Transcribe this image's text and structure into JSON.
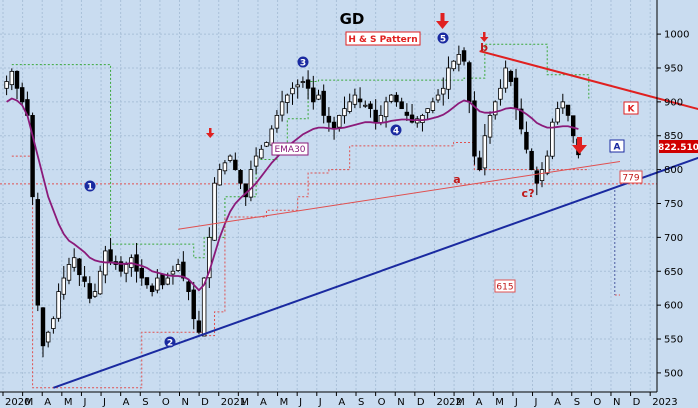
{
  "chart_data": {
    "type": "candlestick",
    "title": "GD",
    "title_color": "#1a9a2a",
    "pattern_label": "H & S Pattern",
    "ema_label": "EMA30",
    "last_price_label": "822.510",
    "level_labels": [
      "779",
      "615"
    ],
    "wave_labels": [
      "1",
      "2",
      "3",
      "4",
      "5"
    ],
    "pattern_point_labels": [
      "a",
      "b",
      "c?"
    ],
    "line_labels": [
      "K",
      "A"
    ],
    "y_axis": {
      "ticks": [
        500,
        550,
        600,
        650,
        700,
        750,
        800,
        850,
        900,
        950,
        1000
      ],
      "range": [
        460,
        1040
      ],
      "side": "right"
    },
    "x_axis": {
      "ticks": [
        "2020",
        "M",
        "A",
        "M",
        "J",
        "J",
        "A",
        "S",
        "O",
        "N",
        "D",
        "2021",
        "M",
        "A",
        "M",
        "J",
        "J",
        "A",
        "S",
        "O",
        "N",
        "D",
        "2022",
        "M",
        "A",
        "M",
        "J",
        "J",
        "A",
        "S",
        "O",
        "N",
        "D",
        "2023"
      ]
    },
    "grid": true,
    "colors": {
      "background": "#c9dcf0",
      "candle": "#000000",
      "ema": "#8b1a7a",
      "trend_k": "#e02020",
      "trend_a": "#1a2aa0",
      "neckline": "#e05050",
      "stop_dotted": "#3aa83a",
      "support_dotted": "#e05050",
      "wave_marker": "#1a2aa0",
      "arrow": "#e02020"
    },
    "weekly_closes": [
      930,
      945,
      920,
      900,
      880,
      760,
      600,
      540,
      560,
      580,
      620,
      640,
      660,
      670,
      645,
      635,
      610,
      620,
      650,
      680,
      665,
      660,
      650,
      660,
      670,
      650,
      640,
      630,
      620,
      640,
      630,
      640,
      650,
      660,
      640,
      620,
      580,
      560,
      640,
      700,
      780,
      800,
      810,
      820,
      800,
      780,
      760,
      800,
      820,
      830,
      840,
      860,
      880,
      900,
      910,
      920,
      925,
      930,
      920,
      900,
      910,
      880,
      870,
      860,
      880,
      890,
      900,
      910,
      900,
      895,
      890,
      870,
      880,
      900,
      910,
      900,
      890,
      880,
      870,
      875,
      880,
      890,
      900,
      910,
      920,
      950,
      960,
      970,
      960,
      900,
      820,
      800,
      850,
      880,
      900,
      920,
      950,
      930,
      890,
      860,
      830,
      800,
      780,
      800,
      820,
      870,
      890,
      900,
      880,
      850,
      822
    ],
    "ema30": [
      900,
      905,
      902,
      895,
      880,
      850,
      820,
      790,
      760,
      740,
      720,
      705,
      695,
      690,
      684,
      678,
      670,
      666,
      664,
      663,
      663,
      662,
      661,
      661,
      662,
      660,
      658,
      655,
      650,
      648,
      646,
      644,
      643,
      643,
      642,
      638,
      630,
      622,
      630,
      650,
      675,
      700,
      720,
      738,
      750,
      758,
      765,
      772,
      780,
      790,
      800,
      810,
      818,
      826,
      834,
      840,
      846,
      852,
      856,
      860,
      862,
      862,
      861,
      860,
      861,
      862,
      864,
      866,
      868,
      870,
      870,
      869,
      869,
      870,
      872,
      873,
      874,
      874,
      873,
      873,
      873,
      874,
      876,
      878,
      881,
      886,
      892,
      898,
      902,
      900,
      893,
      886,
      884,
      884,
      885,
      887,
      890,
      891,
      890,
      887,
      882,
      876,
      869,
      865,
      862,
      862,
      863,
      864,
      864,
      862,
      860
    ],
    "trendlines": [
      {
        "name": "K",
        "from": {
          "week": 91,
          "price": 975
        },
        "to": {
          "week": 145,
          "price": 865
        }
      },
      {
        "name": "A",
        "from": {
          "week": 9,
          "price": 478
        },
        "to": {
          "week": 145,
          "price": 850
        }
      },
      {
        "name": "neckline",
        "from": {
          "week": 33,
          "price": 712
        },
        "to": {
          "week": 118,
          "price": 812
        }
      }
    ],
    "levels": [
      {
        "name": "779",
        "price": 779
      },
      {
        "name": "615",
        "price": 615
      }
    ]
  }
}
